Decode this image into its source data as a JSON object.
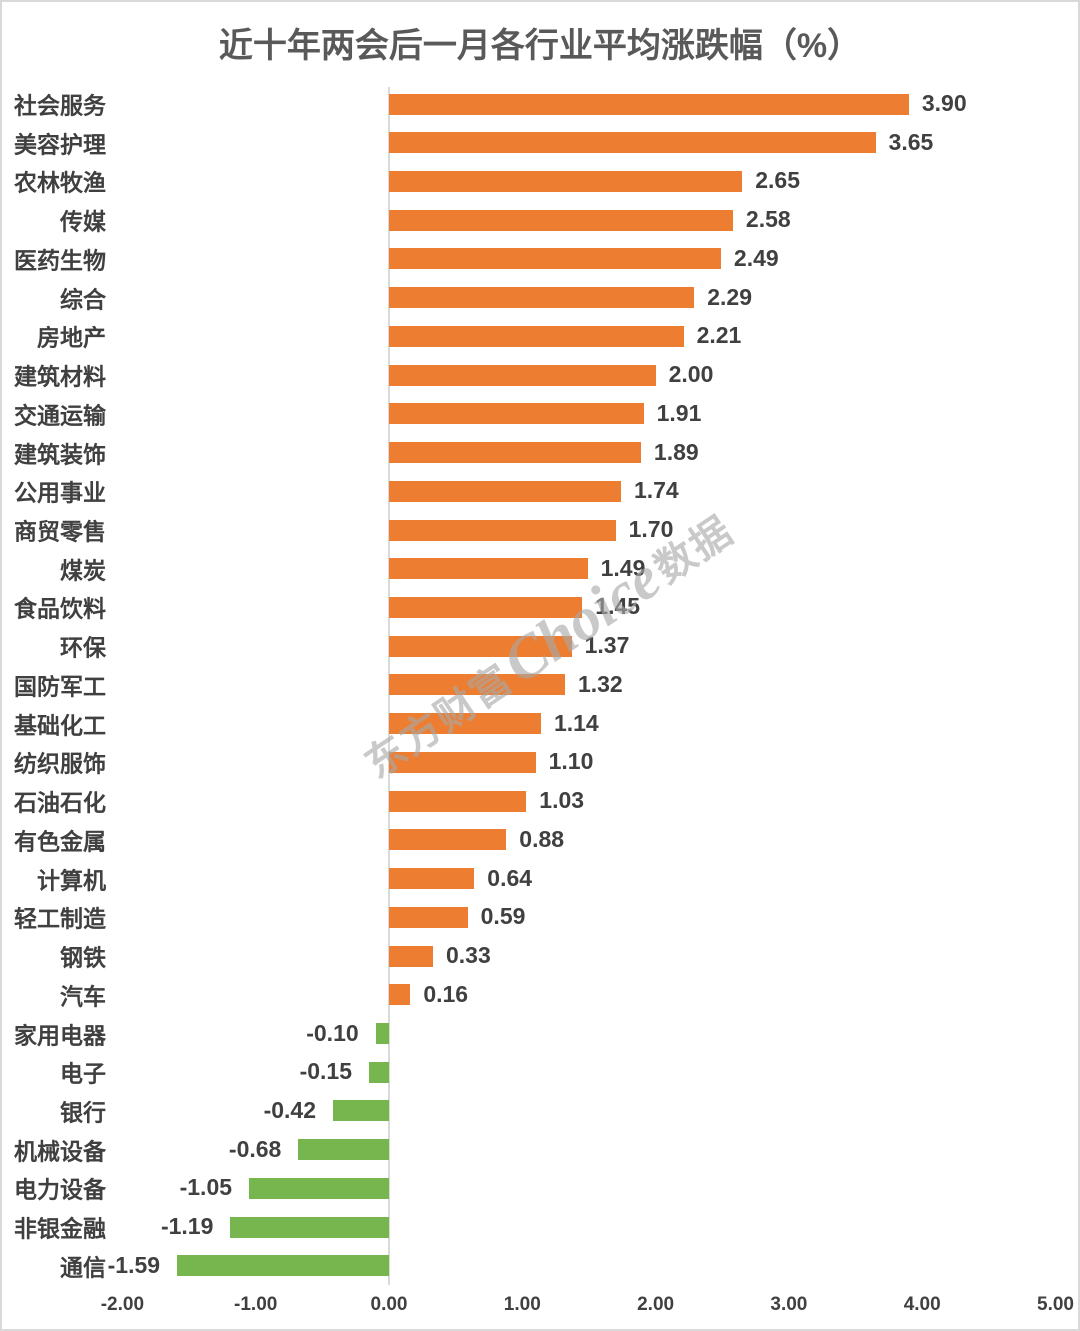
{
  "title": "近十年两会后一月各行业平均涨跌幅（%）",
  "watermark": {
    "prefix": "东方财富",
    "brand": "Choice",
    "suffix": "数据"
  },
  "colors": {
    "positive_bar": "#ED7D31",
    "negative_bar": "#77B64F",
    "title_text": "#595959",
    "label_text": "#404040",
    "axis_line": "#D9D9D9",
    "watermark_text": "#A9A9A9"
  },
  "chart_data": {
    "type": "bar",
    "orientation": "horizontal",
    "title": "近十年两会后一月各行业平均涨跌幅（%）",
    "xlabel": "",
    "ylabel": "",
    "grid": false,
    "xlim": [
      -2.0,
      5.0
    ],
    "xticks": [
      -2,
      -1,
      0,
      1,
      2,
      3,
      4,
      5
    ],
    "xtick_labels": [
      "-2.00",
      "-1.00",
      "0.00",
      "1.00",
      "2.00",
      "3.00",
      "4.00",
      "5.00"
    ],
    "categories": [
      "社会服务",
      "美容护理",
      "农林牧渔",
      "传媒",
      "医药生物",
      "综合",
      "房地产",
      "建筑材料",
      "交通运输",
      "建筑装饰",
      "公用事业",
      "商贸零售",
      "煤炭",
      "食品饮料",
      "环保",
      "国防军工",
      "基础化工",
      "纺织服饰",
      "石油石化",
      "有色金属",
      "计算机",
      "轻工制造",
      "钢铁",
      "汽车",
      "家用电器",
      "电子",
      "银行",
      "机械设备",
      "电力设备",
      "非银金融",
      "通信"
    ],
    "values": [
      3.9,
      3.65,
      2.65,
      2.58,
      2.49,
      2.29,
      2.21,
      2.0,
      1.91,
      1.89,
      1.74,
      1.7,
      1.49,
      1.45,
      1.37,
      1.32,
      1.14,
      1.1,
      1.03,
      0.88,
      0.64,
      0.59,
      0.33,
      0.16,
      -0.1,
      -0.15,
      -0.42,
      -0.68,
      -1.05,
      -1.19,
      -1.59
    ],
    "value_labels": [
      "3.90",
      "3.65",
      "2.65",
      "2.58",
      "2.49",
      "2.29",
      "2.21",
      "2.00",
      "1.91",
      "1.89",
      "1.74",
      "1.70",
      "1.49",
      "1.45",
      "1.37",
      "1.32",
      "1.14",
      "1.10",
      "1.03",
      "0.88",
      "0.64",
      "0.59",
      "0.33",
      "0.16",
      "-0.10",
      "-0.15",
      "-0.42",
      "-0.68",
      "-1.05",
      "-1.19",
      "-1.59"
    ],
    "series_color_rule": "positive values orange, negative values green"
  }
}
